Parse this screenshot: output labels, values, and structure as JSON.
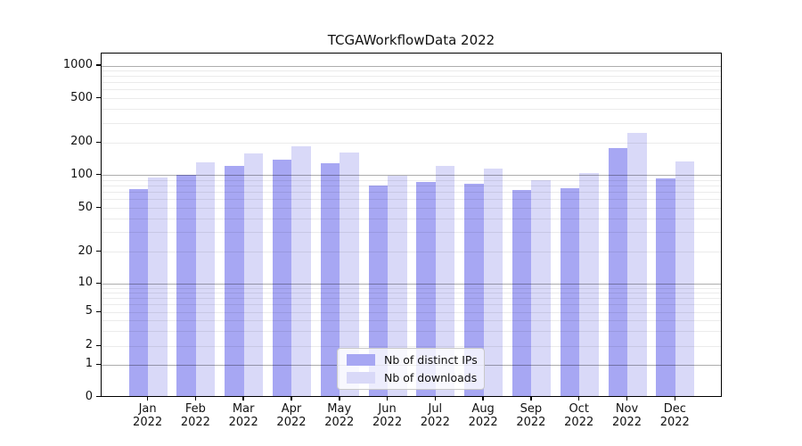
{
  "title": "TCGAWorkflowData 2022",
  "chart_data": {
    "type": "bar",
    "title": "TCGAWorkflowData 2022",
    "categories": [
      "Jan",
      "Feb",
      "Mar",
      "Apr",
      "May",
      "Jun",
      "Jul",
      "Aug",
      "Sep",
      "Oct",
      "Nov",
      "Dec"
    ],
    "year_label": "2022",
    "series": [
      {
        "name": "Nb of distinct IPs",
        "color": "#a7a7f3",
        "values": [
          73,
          98,
          119,
          137,
          126,
          78,
          85,
          81,
          72,
          74,
          173,
          92
        ]
      },
      {
        "name": "Nb of downloads",
        "color": "#d9d9f8",
        "values": [
          93,
          128,
          157,
          180,
          159,
          96,
          119,
          112,
          88,
          102,
          240,
          132
        ]
      }
    ],
    "xlabel": "",
    "ylabel": "",
    "yscale": "symlog",
    "yticks": [
      0,
      1,
      2,
      5,
      10,
      20,
      50,
      100,
      200,
      500,
      1000
    ],
    "ylim": [
      0,
      1300
    ],
    "grid": true,
    "legend_position": "lower center"
  }
}
